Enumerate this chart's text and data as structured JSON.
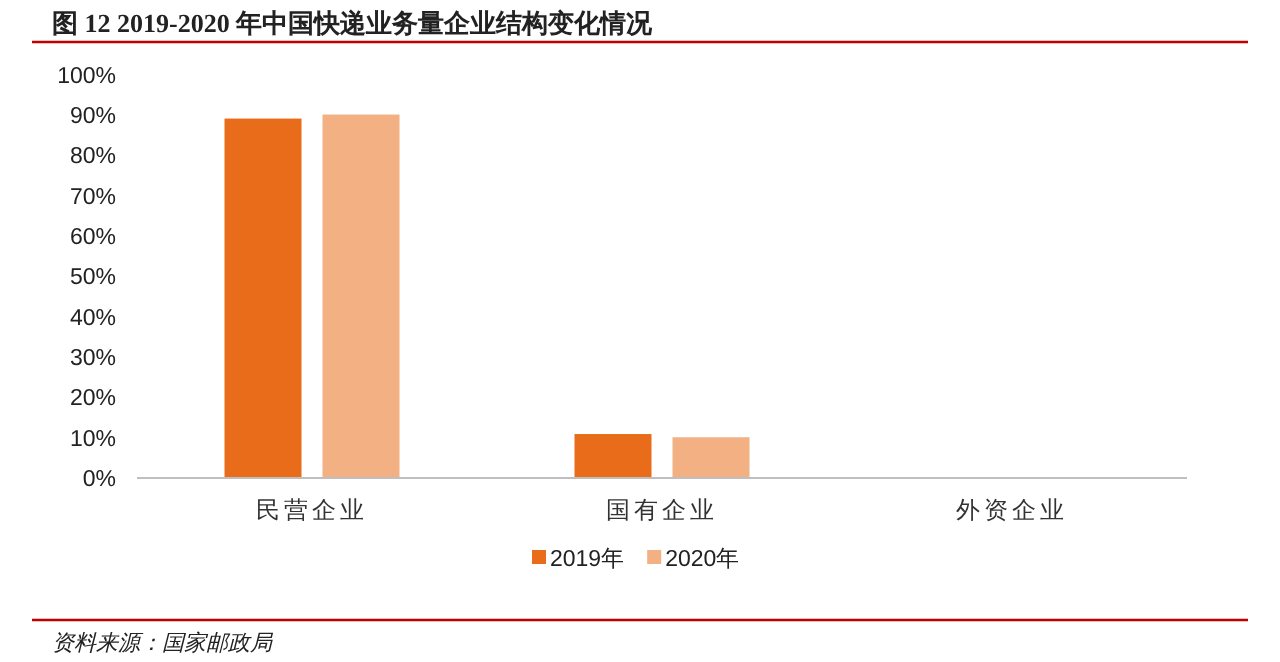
{
  "chart_data": {
    "type": "bar",
    "title": "图 12 2019-2020 年中国快递业务量企业结构变化情况",
    "categories": [
      "民营企业",
      "国有企业",
      "外资企业"
    ],
    "series": [
      {
        "name": "2019年",
        "color": "#e86c19",
        "values": [
          89.1,
          10.9,
          0
        ]
      },
      {
        "name": "2020年",
        "color": "#f2b083",
        "values": [
          90.1,
          10.1,
          0
        ]
      }
    ],
    "ylim": [
      0,
      100
    ],
    "yticks": [
      {
        "value": 0,
        "label": "0%"
      },
      {
        "value": 10,
        "label": "10%"
      },
      {
        "value": 20,
        "label": "20%"
      },
      {
        "value": 30,
        "label": "30%"
      },
      {
        "value": 40,
        "label": "40%"
      },
      {
        "value": 50,
        "label": "50%"
      },
      {
        "value": 60,
        "label": "60%"
      },
      {
        "value": 70,
        "label": "70%"
      },
      {
        "value": 80,
        "label": "80%"
      },
      {
        "value": 90,
        "label": "90%"
      },
      {
        "value": 100,
        "label": "100%"
      }
    ],
    "legend": "bottom",
    "annotations": [
      "资料来源：国家邮政局"
    ]
  }
}
